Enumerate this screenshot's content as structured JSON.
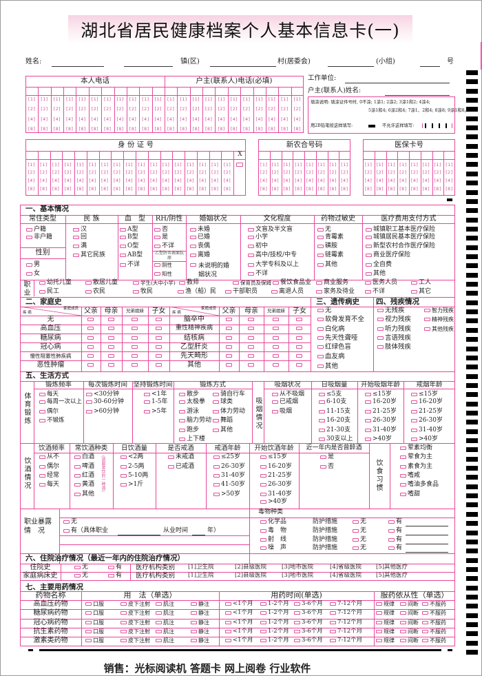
{
  "title": "湖北省居民健康档案个人基本信息卡(一)",
  "address": {
    "name_label": "姓名:",
    "town": "镇(区)",
    "village": "村(居委会)",
    "group": "(小组)",
    "number": "号"
  },
  "phone": {
    "self": "本人电话",
    "household": "户主(联系人)电话(必填)"
  },
  "bubbles": [
    "[1]",
    "[2]",
    "[4]",
    "[8]"
  ],
  "right_info": {
    "work": "工作单位:",
    "contact": "户主(联系人)姓名:"
  },
  "instructions": {
    "line1": "填涂说明: 填涂证件号时, 0不涂; 1涂1; 2涂2; 3涂1和2; 4涂4;",
    "line2": "5涂1和4; 6涂2和4; 7涂1、2和4; 8涂8; 9涂1和8。",
    "correct": "用2B铅笔按这样填写:",
    "wrong": "不允许这样填写:"
  },
  "ids": {
    "id_card": "身 份 证 号",
    "x_label": "X",
    "nrcms": "新农合号码",
    "medical": "医保卡号"
  },
  "s1": {
    "title": "一、基本情况",
    "headers": [
      "常住类型",
      "民 族",
      "血　型",
      "RH/阴性",
      "婚姻状况",
      "文化程度",
      "药物过敏史",
      "医疗费用支付方式"
    ],
    "residence": [
      "户籍",
      "非户籍"
    ],
    "ethnicity": [
      "汉",
      "回",
      "满",
      "其它民族"
    ],
    "blood": [
      "A型",
      "B型",
      "O型",
      "AB型",
      "不详"
    ],
    "rh": [
      "否",
      "是",
      "不详"
    ],
    "hbsag_label": "乙型肝炎表面抗原",
    "hbsag": [
      "阴性",
      "阳性"
    ],
    "marital": [
      "未婚",
      "已婚",
      "丧偶",
      "离婚",
      "未说明的婚姻状况"
    ],
    "education": [
      "文盲及半文盲",
      "小学",
      "初中",
      "高中/技校/中专",
      "大学专科及以上",
      "不详"
    ],
    "allergy": [
      "无",
      "青霉素",
      "磺胺",
      "链霉素",
      "其他"
    ],
    "payment": [
      "城镇职工基本医疗保险",
      "城镇居民基本医疗保险",
      "新型农村合作医疗保险",
      "商业医疗保险",
      "全自费",
      "其他"
    ],
    "gender_label": "性别",
    "gender": [
      "男",
      "女"
    ],
    "occupation_label": "职业",
    "occupations_row1": [
      "幼托儿童",
      "散居儿童",
      "学生(大中小学)",
      "教师",
      "保育员及保姆",
      "餐饮食品业",
      "商业服务",
      "医务人员",
      "工人"
    ],
    "occupations_row2": [
      "民工",
      "农民",
      "牧民",
      "渔（船）民",
      "干部职员",
      "离退人员",
      "家务及待业",
      "不详",
      "其它"
    ]
  },
  "s2": {
    "title": "二、家庭史",
    "corner_member": "家庭成员",
    "corner_disease": "疾 病",
    "members": [
      "父亲",
      "母亲",
      "兄弟姐妹",
      "子女"
    ],
    "diseases_left": [
      "无",
      "高血压",
      "糖尿病",
      "冠心病",
      "慢性阻塞性肺疾病",
      "恶性肿瘤"
    ],
    "diseases_right": [
      "脑卒中",
      "重性精神疾病",
      "结核病",
      "乙型肝炎",
      "先天畸形",
      "其他"
    ]
  },
  "s3": {
    "title": "三、遗传病史",
    "options": [
      "无",
      "软骨发育不全",
      "白化病",
      "先天性聋哑",
      "红绿色盲",
      "血友病",
      "其他"
    ]
  },
  "s4": {
    "title": "四、残疾情况",
    "col1": [
      "无残疾",
      "视力残疾",
      "听力残疾",
      "言语残疾",
      "肢体残疾"
    ],
    "col2": [
      "智力残疾",
      "精神残疾",
      "其他残疾"
    ]
  },
  "s5": {
    "title": "五、生活方式",
    "fitness_label": "体育锻炼",
    "smoking_label": "吸烟情况",
    "headers": [
      "锻炼频率",
      "每次锻炼时间",
      "坚持锻炼时间",
      "锻炼方式",
      "吸烟状况",
      "日吸烟量",
      "开始吸烟年龄",
      "戒烟年龄"
    ],
    "ex_freq": [
      "每天",
      "每周一次以上",
      "偶尔",
      "不锻炼"
    ],
    "ex_time": [
      "<30分钟",
      "30-60分钟",
      ">60分钟"
    ],
    "ex_years": [
      "<1年",
      "1-5年",
      ">5年"
    ],
    "ex_type_left": [
      "散步",
      "太极拳",
      "游泳",
      "脑力劳动",
      "跑步",
      "上下楼"
    ],
    "ex_type_right": [
      "骑自行车",
      "球类",
      "体力劳动",
      "舞蹈",
      "其他"
    ],
    "smoke_status": [
      "从不吸烟",
      "已戒烟",
      "吸烟"
    ],
    "smoke_daily": [
      "≤5支",
      "6-10支",
      "11-15支",
      "16-20支",
      "21-30支",
      "30支以上"
    ],
    "smoke_start": [
      "≤15岁",
      "16-20岁",
      "21-25岁",
      "26-30岁",
      "31-40岁",
      ">40岁"
    ],
    "smoke_quit": [
      "≤15岁",
      "16-20岁",
      "21-25岁",
      "26-30岁",
      "31-40岁",
      ">40岁"
    ],
    "drink_label": "饮酒情况",
    "drink_headers": [
      "饮酒频率",
      "常饮酒种类",
      "日饮酒量",
      "是否戒酒",
      "戒酒年龄",
      "开始饮酒年龄",
      "近一年内是否曾醉酒"
    ],
    "drink_freq": [
      "从不",
      "偶尔",
      "经常",
      "每天"
    ],
    "drink_type": [
      "白酒",
      "啤酒",
      "红酒",
      "黄酒",
      "其他"
    ],
    "drink_type_note": "(选最常饮的一种酒)",
    "drink_amount": [
      "<2两",
      "2-5两",
      "5-10两",
      ">1斤"
    ],
    "drink_quit": [
      "未戒酒",
      "已戒酒"
    ],
    "drink_quit_age": [
      "≤25岁",
      "26-30岁",
      "31-40岁",
      "41-50岁",
      ">50岁"
    ],
    "drink_start_age": [
      "≤15岁",
      "16-20岁",
      "21-25岁",
      "26-30岁",
      "31-40岁",
      ">40岁"
    ],
    "drunk": [
      "是",
      "否"
    ],
    "diet_label": "饮食习惯",
    "diet": [
      "荤素均衡",
      "荤食为主",
      "素食为主",
      "嗜咸",
      "嗜油多食品",
      "嗜甜"
    ],
    "exposure_label1": "职业暴露",
    "exposure_label2": "情　况",
    "exposure_none": "无",
    "exposure_yes": "有（具体职业",
    "exposure_years": "从业时间",
    "exposure_year_unit": "年）",
    "toxin_header": "毒物种类",
    "toxins": [
      "化学品",
      "毒　物",
      "射　线",
      "噪　声"
    ],
    "protection": "防护措施",
    "none": "无",
    "yes": "有"
  },
  "s6": {
    "title": "六、住院治疗情况（最近一年内的住院治疗情况）",
    "rows": [
      "住院史",
      "家庭病床史"
    ],
    "none": "无",
    "yes": "有",
    "facility_label": "医疗机构类别",
    "facilities": [
      "[1]卫生院",
      "[2]县级医院",
      "[3]地市医院",
      "[4]省级医院",
      "[5]其他医疗"
    ]
  },
  "s7": {
    "title": "七、主要用药情况",
    "headers": [
      "药物名称",
      "用　法（单选）",
      "用药时间(单选)",
      "服药依从性（单选）"
    ],
    "drugs": [
      "高血压药物",
      "糖尿病药物",
      "冠心病药物",
      "抗生素药物",
      "激素类药物"
    ],
    "usage": [
      "口服",
      "皮下注射",
      "肌注",
      "静注"
    ],
    "duration": [
      "<1个月",
      "1-2个月",
      "3-6个月",
      "7-12个月"
    ],
    "compliance": [
      "规律",
      "间断",
      "不服药"
    ]
  },
  "footer": "销售：光标阅读机 答题卡 网上阅卷 行业软件",
  "colors": {
    "line": "#e8449a",
    "bubble": "#d4509a",
    "title_bg": "#f6d3e2",
    "mark": "#000000"
  }
}
